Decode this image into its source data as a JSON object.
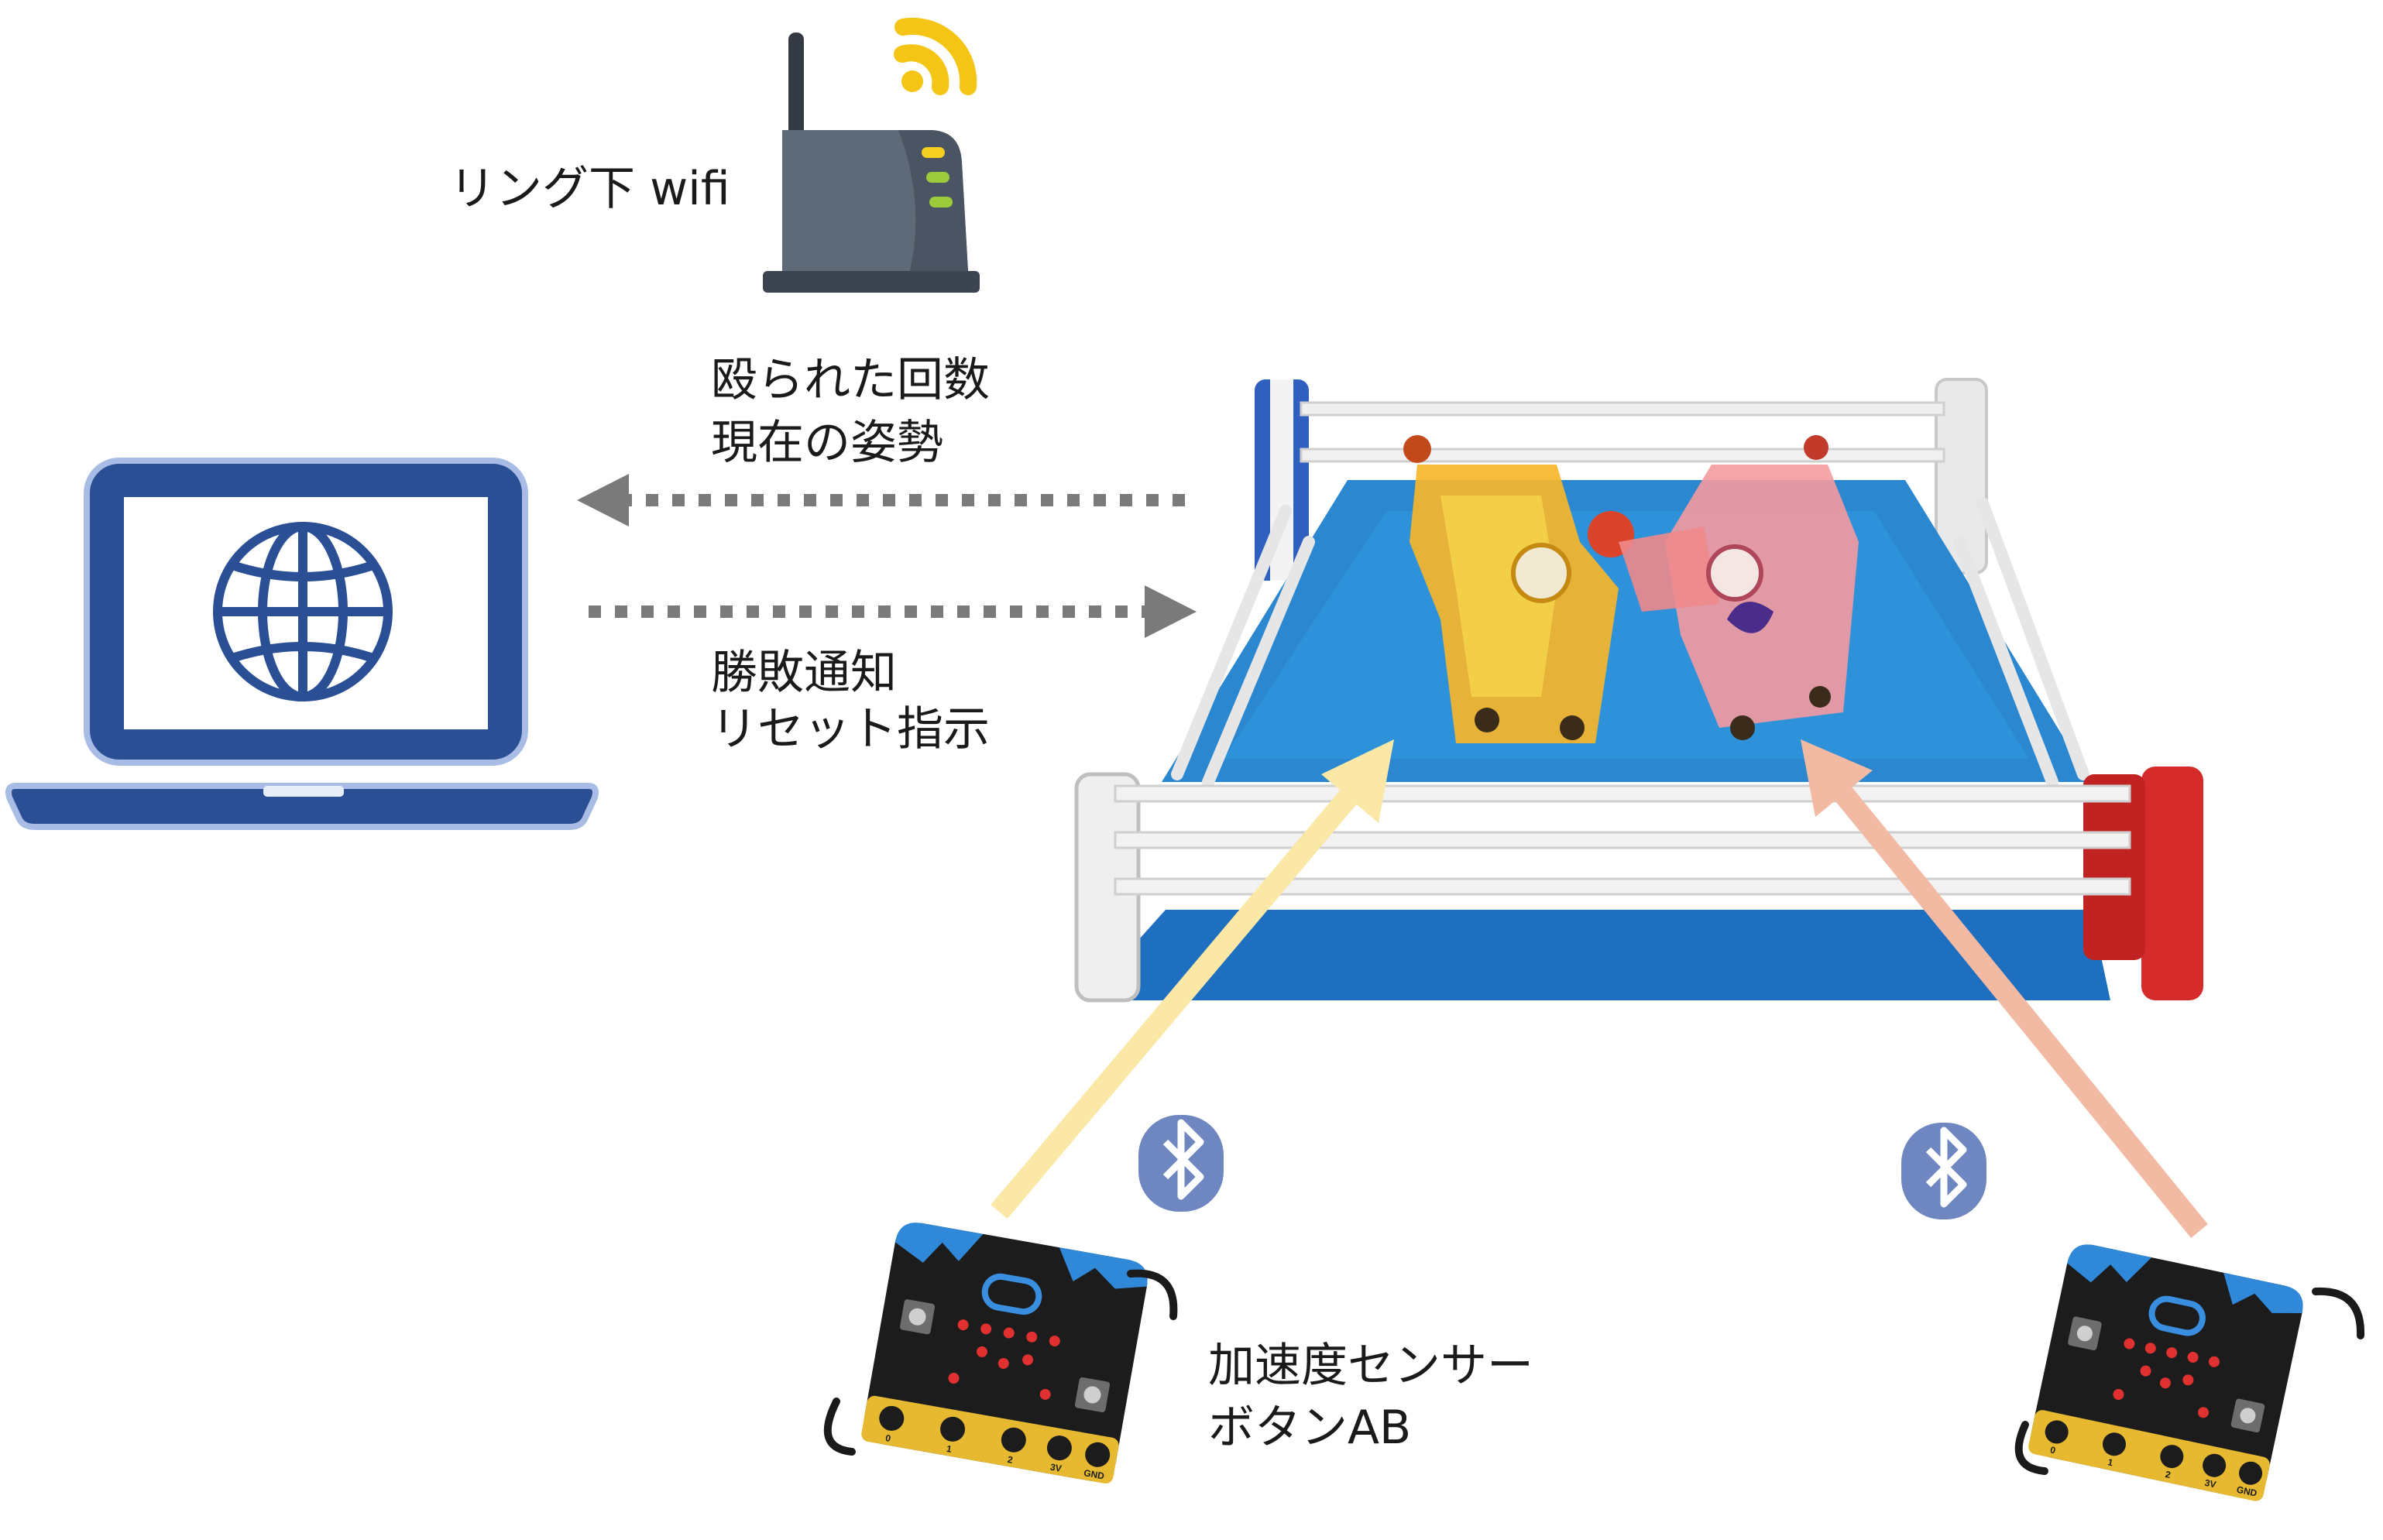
{
  "labels": {
    "router": "リング下 wifi",
    "up_line1": "殴られた回数",
    "up_line2": "現在の姿勢",
    "down_line1": "勝敗通知",
    "down_line2": "リセット指示",
    "sensor_line1": "加速度センサー",
    "sensor_line2": "ボタンAB"
  },
  "icons": {
    "router": "wifi-router-icon",
    "laptop": "laptop-globe-icon",
    "bluetooth": "bluetooth-icon",
    "controller": "microbit-board-icon",
    "ring": "boxing-ring-icon",
    "robot": "toy-robot-icon"
  },
  "board_pins": [
    "0",
    "1",
    "2",
    "3V",
    "GND"
  ],
  "colors": {
    "laptop": "#2b4f94",
    "ring_mat": "#2a87d0",
    "ring_apron": "#1f6fc0",
    "red_corner": "#d62b2b",
    "blue_corner": "#2f5fbf",
    "arrow_left_beam": "#fbe8a6",
    "arrow_right_beam": "#f2b9a3",
    "dotted_arrow": "#7a7a7a",
    "bluetooth": "#6f87c0",
    "wifi_signal": "#f5c515",
    "router_body": "#5f6a78",
    "board": "#1c1c1c",
    "board_gold": "#e6b931"
  }
}
